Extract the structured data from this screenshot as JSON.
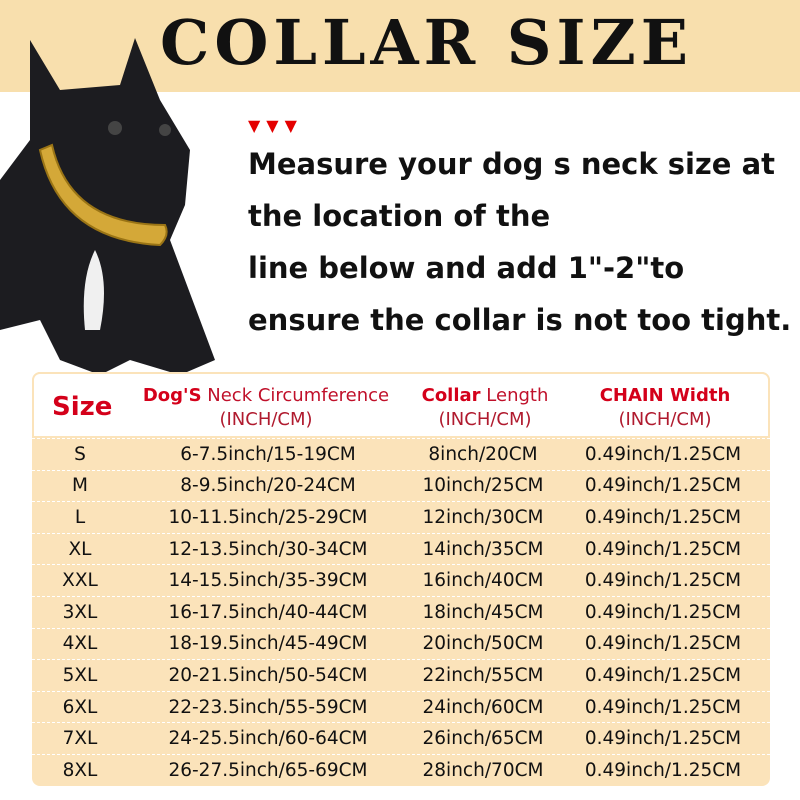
{
  "title": "COLLAR SIZE",
  "accent_colors": {
    "band": "#f8dfad",
    "table": "#fbe3ba",
    "red": "#d4001a"
  },
  "arrows": "▼▼▼",
  "instructions": [
    "Measure your dog s neck size at",
    "the location of the",
    "line below and add 1\"-2\"to",
    "ensure the collar is not too tight."
  ],
  "table": {
    "headers": {
      "size": "Size",
      "neck_bold": "Dog'S",
      "neck_rest": " Neck Circumference",
      "neck_unit": "(INCH/CM)",
      "collar_bold": "Collar",
      "collar_rest": " Length",
      "collar_unit": "(INCH/CM)",
      "chain_bold": "CHAIN Width",
      "chain_unit": "(INCH/CM)"
    },
    "rows": [
      [
        "S",
        "6-7.5inch/15-19CM",
        "8inch/20CM",
        "0.49inch/1.25CM"
      ],
      [
        "M",
        "8-9.5inch/20-24CM",
        "10inch/25CM",
        "0.49inch/1.25CM"
      ],
      [
        "L",
        "10-11.5inch/25-29CM",
        "12inch/30CM",
        "0.49inch/1.25CM"
      ],
      [
        "XL",
        "12-13.5inch/30-34CM",
        "14inch/35CM",
        "0.49inch/1.25CM"
      ],
      [
        "XXL",
        "14-15.5inch/35-39CM",
        "16inch/40CM",
        "0.49inch/1.25CM"
      ],
      [
        "3XL",
        "16-17.5inch/40-44CM",
        "18inch/45CM",
        "0.49inch/1.25CM"
      ],
      [
        "4XL",
        "18-19.5inch/45-49CM",
        "20inch/50CM",
        "0.49inch/1.25CM"
      ],
      [
        "5XL",
        "20-21.5inch/50-54CM",
        "22inch/55CM",
        "0.49inch/1.25CM"
      ],
      [
        "6XL",
        "22-23.5inch/55-59CM",
        "24inch/60CM",
        "0.49inch/1.25CM"
      ],
      [
        "7XL",
        "24-25.5inch/60-64CM",
        "26inch/65CM",
        "0.49inch/1.25CM"
      ],
      [
        "8XL",
        "26-27.5inch/65-69CM",
        "28inch/70CM",
        "0.49inch/1.25CM"
      ]
    ]
  }
}
